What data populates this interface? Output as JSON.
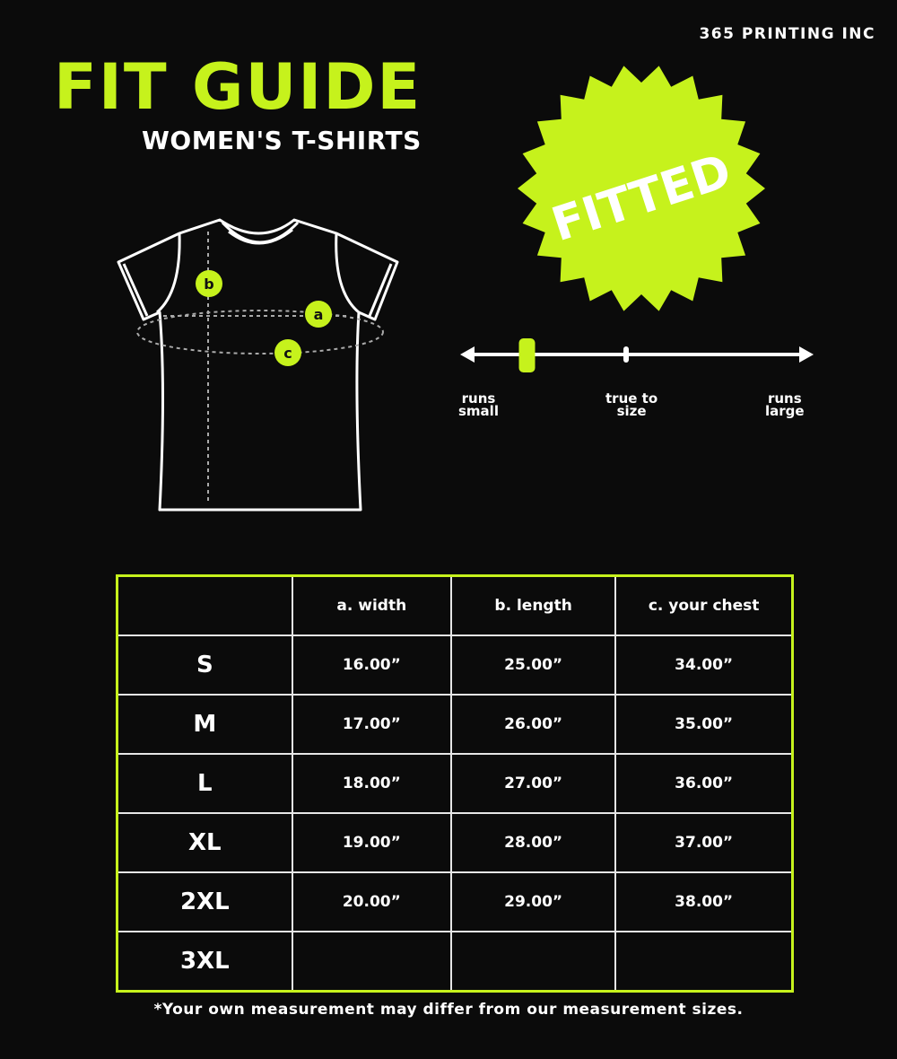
{
  "brand": "365 PRINTING INC",
  "title": "FIT GUIDE",
  "subtitle": "WOMEN'S T-SHIRTS",
  "badge": {
    "label": "FITTED",
    "color": "#c6f21c"
  },
  "diagram": {
    "markers": [
      "a",
      "b",
      "c"
    ]
  },
  "fit_scale": {
    "labels": {
      "small": [
        "runs",
        "small"
      ],
      "true": [
        "true to",
        "size"
      ],
      "large": [
        "runs",
        "large"
      ]
    },
    "level_fraction": 0.18,
    "marker_color": "#c6f21c"
  },
  "table": {
    "headers": [
      "",
      "a. width",
      "b. length",
      "c. your chest"
    ],
    "rows": [
      [
        "S",
        "16.00”",
        "25.00”",
        "34.00”"
      ],
      [
        "M",
        "17.00”",
        "26.00”",
        "35.00”"
      ],
      [
        "L",
        "18.00”",
        "27.00”",
        "36.00”"
      ],
      [
        "XL",
        "19.00”",
        "28.00”",
        "37.00”"
      ],
      [
        "2XL",
        "20.00”",
        "29.00”",
        "38.00”"
      ],
      [
        "3XL",
        "",
        "",
        ""
      ]
    ]
  },
  "note": "*Your own measurement may differ from our measurement sizes.",
  "accent": "#c6f21c"
}
